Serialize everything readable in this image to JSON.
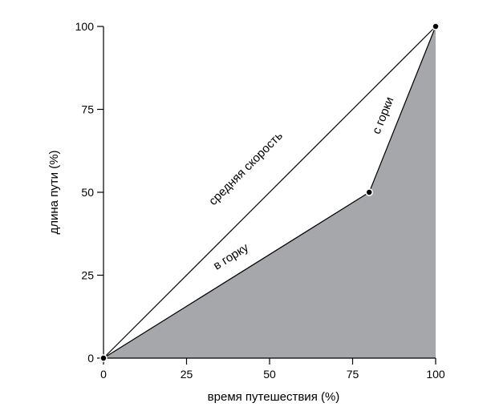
{
  "chart_data": {
    "type": "area",
    "xlabel": "время путешествия (%)",
    "ylabel": "длина пути (%)",
    "xlim": [
      0,
      100
    ],
    "ylim": [
      0,
      100
    ],
    "x_ticks": [
      0,
      25,
      50,
      75,
      100
    ],
    "y_ticks": [
      0,
      25,
      50,
      75,
      100
    ],
    "grid": false,
    "series": [
      {
        "values": [
          [
            0,
            0
          ],
          [
            80,
            50
          ],
          [
            100,
            100
          ]
        ],
        "fill": "#a6a7aa",
        "line_color": "#000000"
      },
      {
        "values": [
          [
            0,
            0
          ],
          [
            100,
            100
          ]
        ],
        "line_color": "#000000"
      }
    ],
    "annotations": [
      {
        "text": "средняя скорость",
        "x": 45,
        "y": 55
      },
      {
        "text": "в горку",
        "x": 40,
        "y": 28
      },
      {
        "text": "с горки",
        "x": 87,
        "y": 72
      }
    ],
    "points": [
      [
        0,
        0
      ],
      [
        80,
        50
      ],
      [
        100,
        100
      ]
    ]
  }
}
